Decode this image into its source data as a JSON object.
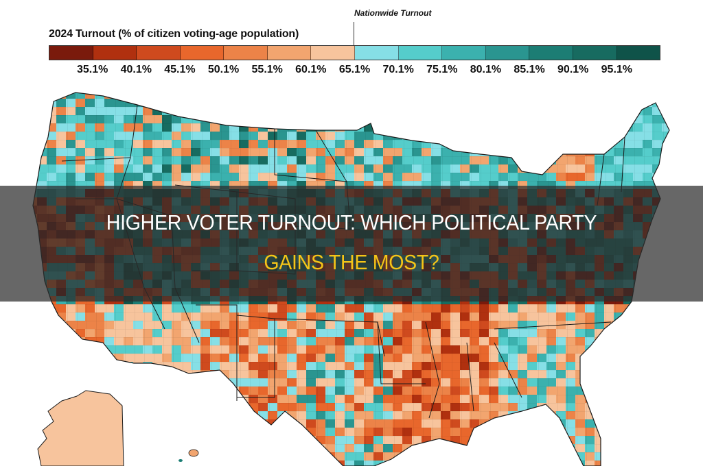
{
  "headline": {
    "line1": "HIGHER VOTER TURNOUT: WHICH POLITICAL PARTY",
    "line2": "GAINS THE MOST?",
    "line1_color": "#ffffff",
    "line2_color": "#f5c518",
    "band_color": "rgba(45,45,45,0.72)"
  },
  "legend": {
    "title": "2024 Turnout (% of citizen voting-age population)",
    "nationwide_label": "Nationwide Turnout",
    "ticks": [
      "35.1%",
      "40.1%",
      "45.1%",
      "50.1%",
      "55.1%",
      "60.1%",
      "65.1%",
      "70.1%",
      "75.1%",
      "80.1%",
      "85.1%",
      "90.1%",
      "95.1%"
    ],
    "swatches": [
      "#7a1a0c",
      "#b0300f",
      "#cf4a1e",
      "#e8672c",
      "#ec8348",
      "#f2a56f",
      "#f7c49d",
      "#86dfe6",
      "#55cdcb",
      "#3bb1ae",
      "#2a9590",
      "#1c7d74",
      "#176b60",
      "#0f5349"
    ]
  },
  "chart_data": {
    "type": "heatmap",
    "subtype": "choropleth",
    "title": "2024 Turnout (% of citizen voting-age population)",
    "xlabel": "",
    "ylabel": "",
    "geography": "United States counties",
    "legend_position": "top",
    "grid": false,
    "scale_breaks": [
      35.1,
      40.1,
      45.1,
      50.1,
      55.1,
      60.1,
      65.1,
      70.1,
      75.1,
      80.1,
      85.1,
      90.1,
      95.1
    ],
    "bins": [
      {
        "range": "<35.1%",
        "color": "#7a1a0c"
      },
      {
        "range": "35.1-40.1%",
        "color": "#b0300f"
      },
      {
        "range": "40.1-45.1%",
        "color": "#cf4a1e"
      },
      {
        "range": "45.1-50.1%",
        "color": "#e8672c"
      },
      {
        "range": "50.1-55.1%",
        "color": "#ec8348"
      },
      {
        "range": "55.1-60.1%",
        "color": "#f2a56f"
      },
      {
        "range": "60.1-65.1%",
        "color": "#f7c49d"
      },
      {
        "range": "65.1-70.1%",
        "color": "#86dfe6"
      },
      {
        "range": "70.1-75.1%",
        "color": "#55cdcb"
      },
      {
        "range": "75.1-80.1%",
        "color": "#3bb1ae"
      },
      {
        "range": "80.1-85.1%",
        "color": "#2a9590"
      },
      {
        "range": "85.1-90.1%",
        "color": "#1c7d74"
      },
      {
        "range": "90.1-95.1%",
        "color": "#176b60"
      },
      {
        "range": ">95.1%",
        "color": "#0f5349"
      }
    ],
    "annotations": [
      {
        "text": "Nationwide Turnout",
        "at": 65.1
      }
    ],
    "regional_pattern": [
      {
        "region": "Pacific Northwest",
        "dominant": "teal (65-85%)"
      },
      {
        "region": "Northern Plains / Montana",
        "dominant": "mixed teal and orange"
      },
      {
        "region": "Upper Midwest (MN, WI, MI)",
        "dominant": "teal (70-85%)"
      },
      {
        "region": "New England",
        "dominant": "light teal (65-80%)"
      },
      {
        "region": "Upstate New York",
        "dominant": "orange (50-65%)"
      },
      {
        "region": "Southwest (AZ, NM, southern CA)",
        "dominant": "light orange (55-65%) with some teal"
      },
      {
        "region": "Texas",
        "dominant": "orange with scattered teal"
      },
      {
        "region": "Deep South (AR, MS, LA, AL)",
        "dominant": "orange to dark orange (40-60%)"
      },
      {
        "region": "Georgia / Carolinas coast / Florida",
        "dominant": "mixed teal and light orange"
      },
      {
        "region": "Alaska",
        "dominant": "light orange (60-65%)"
      }
    ]
  }
}
